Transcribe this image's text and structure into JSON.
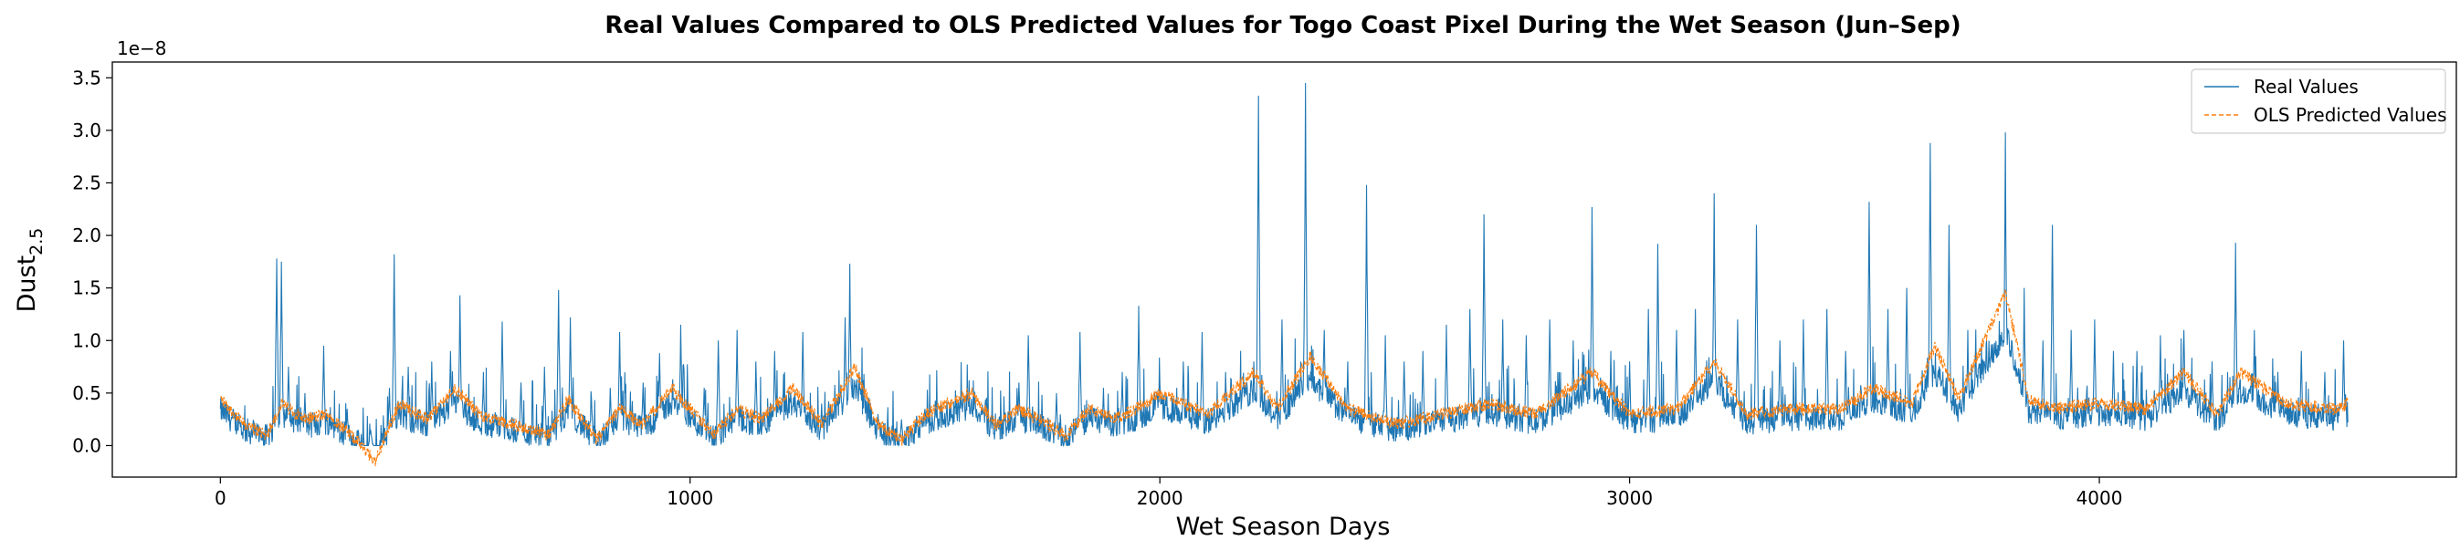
{
  "chart_data": {
    "type": "line",
    "title": "Real Values Compared to OLS Predicted Values for Togo Coast Pixel During the Wet Season (Jun–Sep)",
    "xlabel": "Wet Season Days",
    "ylabel_main": "Dust",
    "ylabel_sub": "2.5",
    "y_offset_label": "1e−8",
    "xlim": [
      -230,
      4760
    ],
    "ylim": [
      -0.3,
      3.65
    ],
    "x_ticks": [
      0,
      1000,
      2000,
      3000,
      4000
    ],
    "x_tick_labels": [
      "0",
      "1000",
      "2000",
      "3000",
      "4000"
    ],
    "y_ticks": [
      0.0,
      0.5,
      1.0,
      1.5,
      2.0,
      2.5,
      3.0,
      3.5
    ],
    "y_tick_labels": [
      "0.0",
      "0.5",
      "1.0",
      "1.5",
      "2.0",
      "2.5",
      "3.0",
      "3.5"
    ],
    "grid": false,
    "legend_position": "upper right",
    "n_points": 4530,
    "series": [
      {
        "name": "Real Values",
        "color": "#1f77b4",
        "style": "solid",
        "peaks": [
          [
            0,
            0.35
          ],
          [
            40,
            0.3
          ],
          [
            85,
            0.1
          ],
          [
            120,
            1.78
          ],
          [
            130,
            1.75
          ],
          [
            145,
            0.75
          ],
          [
            180,
            0.5
          ],
          [
            220,
            0.95
          ],
          [
            270,
            0.35
          ],
          [
            320,
            0.15
          ],
          [
            360,
            0.55
          ],
          [
            370,
            1.82
          ],
          [
            400,
            0.75
          ],
          [
            450,
            0.8
          ],
          [
            490,
            0.9
          ],
          [
            510,
            1.43
          ],
          [
            560,
            0.7
          ],
          [
            600,
            1.18
          ],
          [
            640,
            0.6
          ],
          [
            690,
            0.75
          ],
          [
            720,
            1.48
          ],
          [
            745,
            1.22
          ],
          [
            790,
            0.45
          ],
          [
            830,
            0.55
          ],
          [
            850,
            1.08
          ],
          [
            900,
            0.6
          ],
          [
            935,
            0.88
          ],
          [
            980,
            1.15
          ],
          [
            1030,
            0.55
          ],
          [
            1060,
            1.0
          ],
          [
            1100,
            1.1
          ],
          [
            1140,
            0.8
          ],
          [
            1180,
            0.9
          ],
          [
            1240,
            1.08
          ],
          [
            1280,
            0.4
          ],
          [
            1330,
            1.22
          ],
          [
            1340,
            1.73
          ],
          [
            1360,
            0.7
          ],
          [
            1400,
            0.3
          ],
          [
            1450,
            0.25
          ],
          [
            1500,
            0.35
          ],
          [
            1600,
            0.3
          ],
          [
            1700,
            0.6
          ],
          [
            1720,
            1.05
          ],
          [
            1780,
            0.5
          ],
          [
            1830,
            1.08
          ],
          [
            1880,
            0.55
          ],
          [
            1920,
            0.7
          ],
          [
            1955,
            1.33
          ],
          [
            2000,
            0.6
          ],
          [
            2050,
            0.8
          ],
          [
            2090,
            1.08
          ],
          [
            2140,
            0.7
          ],
          [
            2200,
            0.8
          ],
          [
            2210,
            3.33
          ],
          [
            2260,
            1.2
          ],
          [
            2300,
            0.8
          ],
          [
            2310,
            3.45
          ],
          [
            2350,
            1.1
          ],
          [
            2400,
            0.8
          ],
          [
            2440,
            2.48
          ],
          [
            2480,
            1.05
          ],
          [
            2520,
            0.8
          ],
          [
            2560,
            0.9
          ],
          [
            2610,
            1.15
          ],
          [
            2660,
            1.3
          ],
          [
            2690,
            2.2
          ],
          [
            2730,
            1.2
          ],
          [
            2780,
            1.05
          ],
          [
            2830,
            1.2
          ],
          [
            2880,
            1.0
          ],
          [
            2920,
            2.27
          ],
          [
            2960,
            0.9
          ],
          [
            3000,
            0.8
          ],
          [
            3040,
            1.3
          ],
          [
            3060,
            1.92
          ],
          [
            3100,
            1.1
          ],
          [
            3140,
            1.3
          ],
          [
            3180,
            2.4
          ],
          [
            3230,
            1.2
          ],
          [
            3270,
            2.1
          ],
          [
            3320,
            1.0
          ],
          [
            3370,
            1.2
          ],
          [
            3420,
            1.3
          ],
          [
            3460,
            0.9
          ],
          [
            3510,
            2.32
          ],
          [
            3550,
            1.3
          ],
          [
            3590,
            1.5
          ],
          [
            3640,
            2.88
          ],
          [
            3680,
            2.1
          ],
          [
            3720,
            1.1
          ],
          [
            3760,
            1.0
          ],
          [
            3800,
            2.98
          ],
          [
            3840,
            1.5
          ],
          [
            3880,
            1.0
          ],
          [
            3900,
            2.1
          ],
          [
            3940,
            1.1
          ],
          [
            3990,
            1.2
          ],
          [
            4030,
            0.9
          ],
          [
            4080,
            0.9
          ],
          [
            4130,
            1.05
          ],
          [
            4180,
            1.1
          ],
          [
            4240,
            0.8
          ],
          [
            4290,
            1.93
          ],
          [
            4330,
            1.1
          ],
          [
            4380,
            0.7
          ],
          [
            4430,
            0.9
          ],
          [
            4480,
            0.7
          ],
          [
            4520,
            1.0
          ]
        ]
      },
      {
        "name": "OLS Predicted Values",
        "color": "#ff7f0e",
        "style": "dashed",
        "baseline": [
          [
            0,
            0.45
          ],
          [
            50,
            0.2
          ],
          [
            100,
            0.1
          ],
          [
            130,
            0.4
          ],
          [
            180,
            0.25
          ],
          [
            230,
            0.3
          ],
          [
            290,
            0.05
          ],
          [
            330,
            -0.15
          ],
          [
            380,
            0.4
          ],
          [
            440,
            0.25
          ],
          [
            500,
            0.55
          ],
          [
            550,
            0.3
          ],
          [
            620,
            0.2
          ],
          [
            700,
            0.1
          ],
          [
            740,
            0.45
          ],
          [
            800,
            0.05
          ],
          [
            850,
            0.35
          ],
          [
            900,
            0.2
          ],
          [
            960,
            0.55
          ],
          [
            1000,
            0.35
          ],
          [
            1050,
            0.1
          ],
          [
            1100,
            0.35
          ],
          [
            1150,
            0.25
          ],
          [
            1220,
            0.55
          ],
          [
            1280,
            0.2
          ],
          [
            1350,
            0.75
          ],
          [
            1400,
            0.2
          ],
          [
            1450,
            0.05
          ],
          [
            1500,
            0.3
          ],
          [
            1600,
            0.5
          ],
          [
            1650,
            0.2
          ],
          [
            1700,
            0.35
          ],
          [
            1800,
            0.1
          ],
          [
            1850,
            0.35
          ],
          [
            1900,
            0.25
          ],
          [
            1950,
            0.35
          ],
          [
            2000,
            0.5
          ],
          [
            2100,
            0.3
          ],
          [
            2200,
            0.7
          ],
          [
            2250,
            0.35
          ],
          [
            2320,
            0.85
          ],
          [
            2400,
            0.35
          ],
          [
            2500,
            0.2
          ],
          [
            2600,
            0.3
          ],
          [
            2700,
            0.4
          ],
          [
            2800,
            0.3
          ],
          [
            2920,
            0.7
          ],
          [
            3000,
            0.3
          ],
          [
            3100,
            0.35
          ],
          [
            3180,
            0.8
          ],
          [
            3250,
            0.3
          ],
          [
            3350,
            0.35
          ],
          [
            3450,
            0.35
          ],
          [
            3520,
            0.55
          ],
          [
            3600,
            0.4
          ],
          [
            3650,
            0.95
          ],
          [
            3700,
            0.45
          ],
          [
            3800,
            1.45
          ],
          [
            3850,
            0.45
          ],
          [
            3900,
            0.35
          ],
          [
            4000,
            0.4
          ],
          [
            4100,
            0.35
          ],
          [
            4180,
            0.7
          ],
          [
            4250,
            0.3
          ],
          [
            4300,
            0.7
          ],
          [
            4400,
            0.4
          ],
          [
            4500,
            0.35
          ],
          [
            4530,
            0.4
          ]
        ]
      }
    ]
  }
}
